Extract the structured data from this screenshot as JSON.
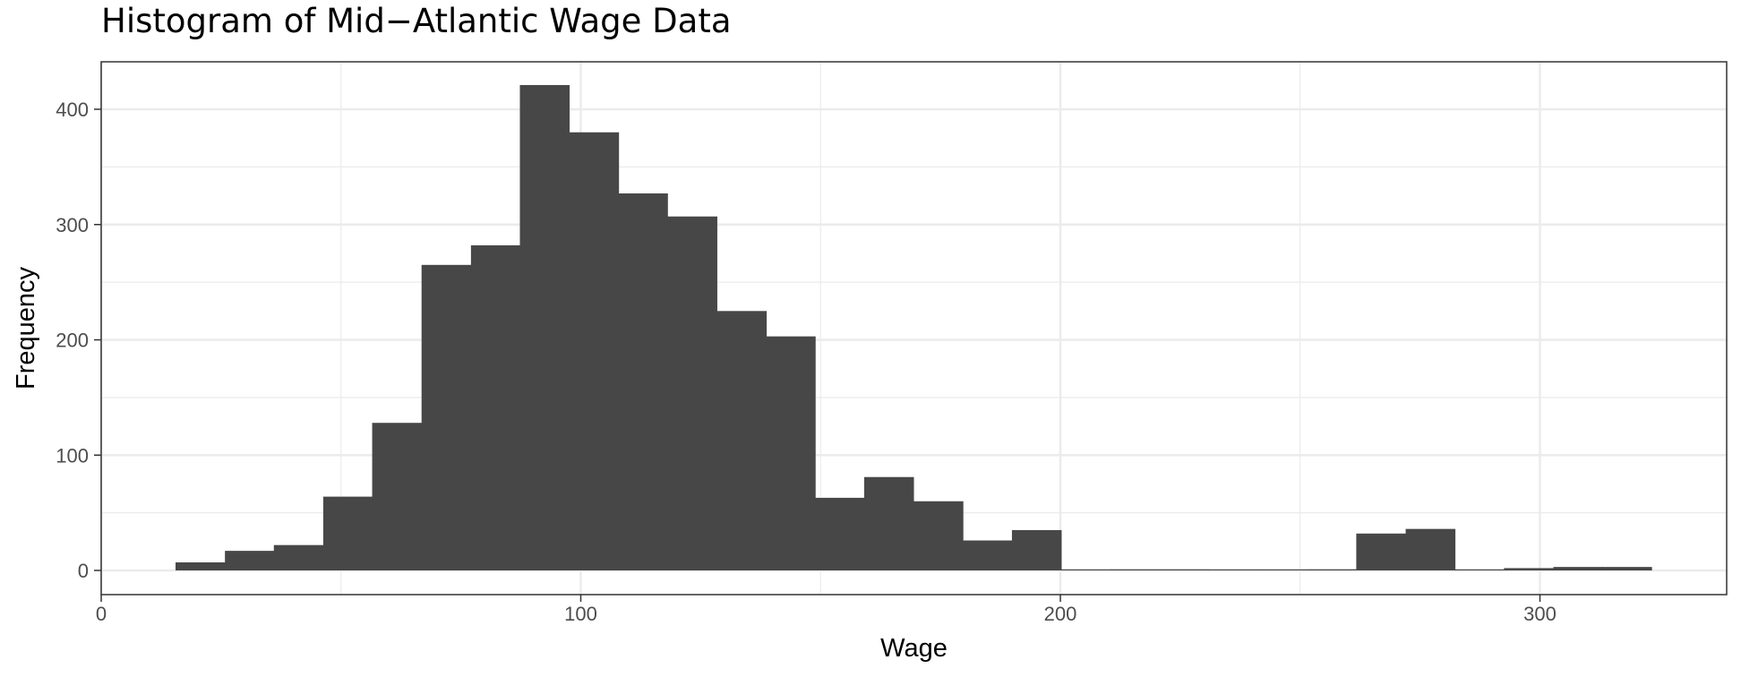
{
  "chart_data": {
    "type": "bar",
    "title": "Histogram of Mid−Atlantic Wage Data",
    "xlabel": "Wage",
    "ylabel": "Frequency",
    "xlim": [
      0,
      340
    ],
    "ylim": [
      -20,
      440
    ],
    "x_ticks": [
      0,
      100,
      200,
      300
    ],
    "y_ticks": [
      0,
      100,
      200,
      300,
      400
    ],
    "grid": true,
    "bin_width": 10.26,
    "bins": [
      {
        "x0": 15.5,
        "count": 7
      },
      {
        "x0": 25.8,
        "count": 17
      },
      {
        "x0": 36.0,
        "count": 22
      },
      {
        "x0": 46.3,
        "count": 64
      },
      {
        "x0": 56.5,
        "count": 128
      },
      {
        "x0": 66.8,
        "count": 265
      },
      {
        "x0": 77.1,
        "count": 282
      },
      {
        "x0": 87.3,
        "count": 421
      },
      {
        "x0": 97.6,
        "count": 380
      },
      {
        "x0": 107.8,
        "count": 327
      },
      {
        "x0": 118.1,
        "count": 307
      },
      {
        "x0": 128.4,
        "count": 225
      },
      {
        "x0": 138.6,
        "count": 203
      },
      {
        "x0": 148.9,
        "count": 63
      },
      {
        "x0": 159.1,
        "count": 81
      },
      {
        "x0": 169.4,
        "count": 60
      },
      {
        "x0": 179.7,
        "count": 26
      },
      {
        "x0": 189.9,
        "count": 35
      },
      {
        "x0": 200.2,
        "count": 0
      },
      {
        "x0": 210.4,
        "count": 1
      },
      {
        "x0": 220.7,
        "count": 1
      },
      {
        "x0": 231.0,
        "count": 0
      },
      {
        "x0": 241.2,
        "count": 0
      },
      {
        "x0": 251.5,
        "count": 1
      },
      {
        "x0": 261.7,
        "count": 32
      },
      {
        "x0": 272.0,
        "count": 36
      },
      {
        "x0": 282.3,
        "count": 0
      },
      {
        "x0": 292.5,
        "count": 2
      },
      {
        "x0": 302.8,
        "count": 3
      },
      {
        "x0": 313.0,
        "count": 3
      }
    ],
    "bar_color": "#474747",
    "panel_border_color": "#333333",
    "grid_color": "#ebebeb"
  }
}
